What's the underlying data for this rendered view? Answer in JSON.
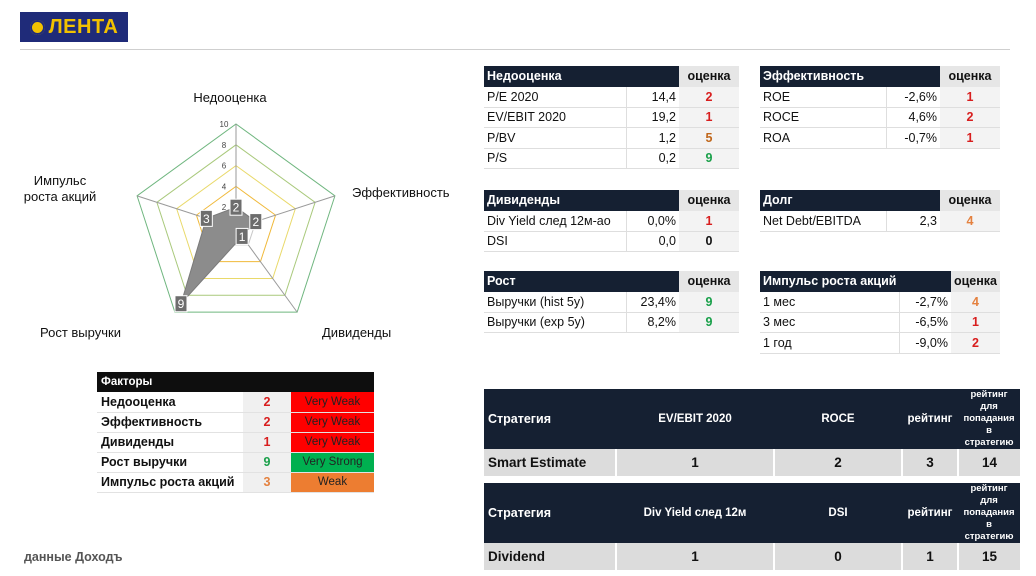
{
  "logo": {
    "text": "ЛЕНТА"
  },
  "chart_data": {
    "type": "radar",
    "axes": [
      "Недооценка",
      "Эффективность",
      "Дивиденды",
      "Рост выручки",
      "Импульс роста акций"
    ],
    "values": [
      2,
      2,
      1,
      9,
      3
    ],
    "rlim": [
      0,
      10
    ],
    "rticks": [
      0,
      2,
      4,
      6,
      8,
      10
    ],
    "fill_color": "#8c8c8c",
    "ring_colors": [
      "#c8c8c8",
      "#f0b93a",
      "#e9d96a",
      "#a9c97c",
      "#6fb67f"
    ]
  },
  "tables": {
    "undervaluation": {
      "title": "Недооценка",
      "score_header": "оценка",
      "rows": [
        {
          "label": "P/E 2020",
          "value": "14,4",
          "score": "2",
          "color": "red"
        },
        {
          "label": "EV/EBIT 2020",
          "value": "19,2",
          "score": "1",
          "color": "red"
        },
        {
          "label": "P/BV",
          "value": "1,2",
          "score": "5",
          "color": "brown"
        },
        {
          "label": "P/S",
          "value": "0,2",
          "score": "9",
          "color": "green"
        }
      ]
    },
    "efficiency": {
      "title": "Эффективность",
      "score_header": "оценка",
      "rows": [
        {
          "label": "ROE",
          "value": "-2,6%",
          "score": "1",
          "color": "red"
        },
        {
          "label": "ROCE",
          "value": "4,6%",
          "score": "2",
          "color": "red"
        },
        {
          "label": "ROA",
          "value": "-0,7%",
          "score": "1",
          "color": "red"
        }
      ]
    },
    "dividends": {
      "title": "Дивиденды",
      "score_header": "оценка",
      "rows": [
        {
          "label": "Div Yield след 12м-ао",
          "value": "0,0%",
          "score": "1",
          "color": "red"
        },
        {
          "label": "DSI",
          "value": "0,0",
          "score": "0",
          "color": "black"
        }
      ]
    },
    "debt": {
      "title": "Долг",
      "score_header": "оценка",
      "rows": [
        {
          "label": "Net Debt/EBITDA",
          "value": "2,3",
          "score": "4",
          "color": "orange"
        }
      ]
    },
    "growth": {
      "title": "Рост",
      "score_header": "оценка",
      "rows": [
        {
          "label": "Выручки (hist 5y)",
          "value": "23,4%",
          "score": "9",
          "color": "green"
        },
        {
          "label": "Выручки (exp 5y)",
          "value": "8,2%",
          "score": "9",
          "color": "green"
        }
      ]
    },
    "momentum": {
      "title": "Импульс роста акций",
      "score_header": "оценка",
      "rows": [
        {
          "label": "1 мес",
          "value": "-2,7%",
          "score": "4",
          "color": "orange"
        },
        {
          "label": "3 мес",
          "value": "-6,5%",
          "score": "1",
          "color": "red"
        },
        {
          "label": "1 год",
          "value": "-9,0%",
          "score": "2",
          "color": "red"
        }
      ]
    }
  },
  "factors": {
    "title": "Факторы",
    "rows": [
      {
        "label": "Недооценка",
        "score": "2",
        "rating": "Very Weak",
        "color": "red",
        "bg": "red"
      },
      {
        "label": "Эффективность",
        "score": "2",
        "rating": "Very Weak",
        "color": "red",
        "bg": "red"
      },
      {
        "label": "Дивиденды",
        "score": "1",
        "rating": "Very Weak",
        "color": "red",
        "bg": "red"
      },
      {
        "label": "Рост выручки",
        "score": "9",
        "rating": "Very Strong",
        "color": "green",
        "bg": "green"
      },
      {
        "label": "Импульс роста акций",
        "score": "3",
        "rating": "Weak",
        "color": "orange",
        "bg": "orange"
      }
    ]
  },
  "strategies": [
    {
      "headers": [
        "Стратегия",
        "EV/EBIT 2020",
        "ROCE",
        "рейтинг",
        "рейтинг для попадания в стратегию"
      ],
      "row": [
        "Smart Estimate",
        "1",
        "2",
        "3",
        "14"
      ]
    },
    {
      "headers": [
        "Стратегия",
        "Div Yield след 12м",
        "DSI",
        "рейтинг",
        "рейтинг для попадания в стратегию"
      ],
      "row": [
        "Dividend",
        "1",
        "0",
        "1",
        "15"
      ]
    }
  ],
  "source": "данные Доходъ"
}
